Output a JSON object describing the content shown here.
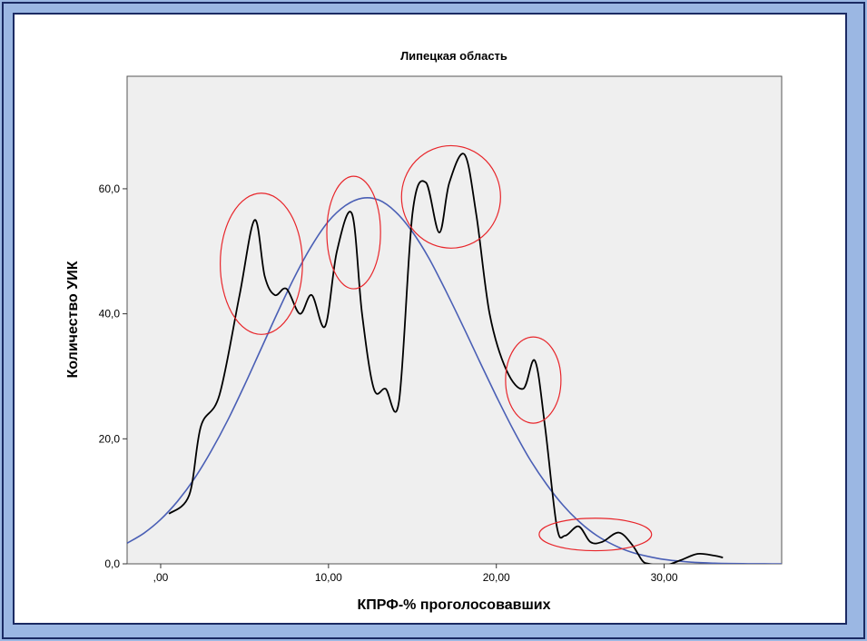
{
  "chart_data": {
    "type": "line",
    "title": "Липецкая область",
    "xlabel": "КПРФ-% проголосовавших",
    "ylabel": "Количество УИК",
    "xlim": [
      -2,
      37
    ],
    "ylim": [
      0,
      78
    ],
    "x_ticks": [
      0,
      10,
      20,
      30
    ],
    "x_tick_labels": [
      ",00",
      "10,00",
      "20,00",
      "30,00"
    ],
    "y_ticks": [
      0,
      20,
      40,
      60
    ],
    "y_tick_labels": [
      "0,0",
      "20,0",
      "40,0",
      "60,0"
    ],
    "plot_background": "#efefef",
    "grid": false,
    "legend": "none",
    "series": [
      {
        "color": "#000000",
        "x": [
          0.5,
          1.7,
          2.4,
          3.5,
          4.7,
          5.6,
          6.2,
          6.8,
          7.5,
          8.3,
          9.0,
          9.8,
          10.5,
          11.4,
          12.0,
          12.7,
          13.4,
          14.2,
          15.0,
          15.8,
          16.6,
          17.2,
          18.1,
          18.8,
          19.6,
          20.6,
          21.6,
          22.3,
          22.9,
          23.6,
          24.1,
          24.9,
          25.6,
          26.3,
          27.3,
          28.1,
          28.7,
          29.1,
          30.0,
          31.0,
          32.0,
          33.0,
          33.5
        ],
        "y": [
          8,
          11,
          22,
          27,
          43,
          55,
          46,
          43,
          44,
          40,
          43,
          38,
          50,
          56,
          40,
          28,
          28,
          26,
          56,
          61,
          53,
          61,
          65.5,
          56,
          40,
          31,
          28,
          32.5,
          22,
          6,
          4.5,
          6,
          3.5,
          3.5,
          5,
          3,
          0.5,
          0,
          -0.3,
          0.6,
          1.6,
          1.3,
          1
        ],
        "note": ""
      },
      {
        "color": "#4a5fb5",
        "x": [
          -2,
          -1,
          0,
          1,
          2,
          3,
          4,
          5,
          6,
          7,
          8,
          9,
          10,
          11,
          12,
          13,
          14,
          15,
          16,
          17,
          18,
          19,
          20,
          21,
          22,
          23,
          24,
          25,
          26,
          27,
          28,
          29,
          30,
          31,
          32,
          33,
          34,
          35,
          36,
          37
        ],
        "y": [
          3.3,
          4.9,
          7.1,
          10.0,
          13.6,
          18.0,
          23.0,
          28.6,
          34.5,
          40.4,
          46.0,
          50.9,
          54.8,
          57.3,
          58.5,
          58.2,
          56.3,
          53.1,
          48.8,
          43.6,
          38.1,
          32.4,
          26.8,
          21.5,
          16.7,
          12.7,
          9.3,
          6.6,
          4.5,
          3.0,
          1.9,
          1.2,
          0.7,
          0.4,
          0.2,
          0.1,
          0.05,
          0.02,
          0.01,
          0.0
        ]
      }
    ],
    "annotations": [
      {
        "shape": "ellipse",
        "color": "#e8262b",
        "cx": 6.0,
        "cy": 48.0,
        "rx": 2.45,
        "ry": 11.3
      },
      {
        "shape": "ellipse",
        "color": "#e8262b",
        "cx": 11.5,
        "cy": 53.0,
        "rx": 1.6,
        "ry": 9.0
      },
      {
        "shape": "ellipse",
        "color": "#e8262b",
        "cx": 17.3,
        "cy": 58.7,
        "rx": 2.95,
        "ry": 8.2
      },
      {
        "shape": "ellipse",
        "color": "#e8262b",
        "cx": 22.2,
        "cy": 29.4,
        "rx": 1.65,
        "ry": 6.9
      },
      {
        "shape": "ellipse",
        "color": "#e8262b",
        "cx": 25.9,
        "cy": 4.7,
        "rx": 3.35,
        "ry": 2.6
      }
    ]
  }
}
